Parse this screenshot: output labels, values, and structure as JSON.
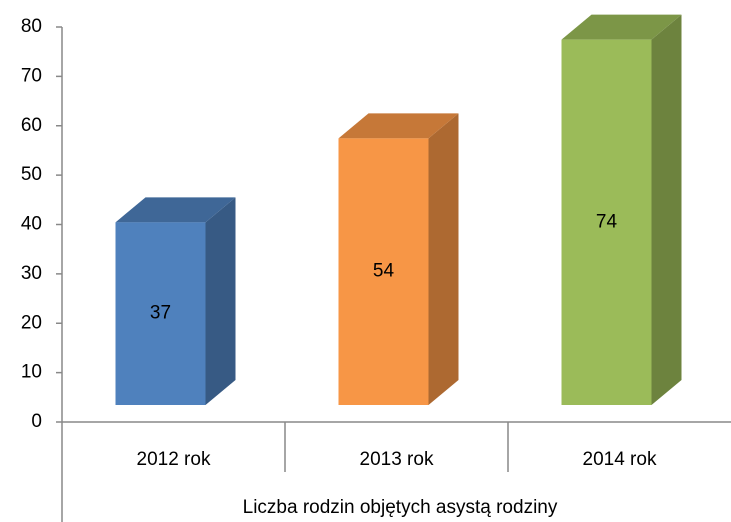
{
  "chart_data": {
    "type": "bar",
    "x_label": "Liczba rodzin objętych asystą rodziny",
    "categories": [
      "2012 rok",
      "2013 rok",
      "2014 rok"
    ],
    "values": [
      37,
      54,
      74
    ],
    "colors": [
      "#4f81bd",
      "#f79646",
      "#9bbb59"
    ],
    "ylim": [
      0,
      80
    ],
    "yticks": [
      0,
      10,
      20,
      30,
      40,
      50,
      60,
      70,
      80
    ],
    "grid": false
  }
}
